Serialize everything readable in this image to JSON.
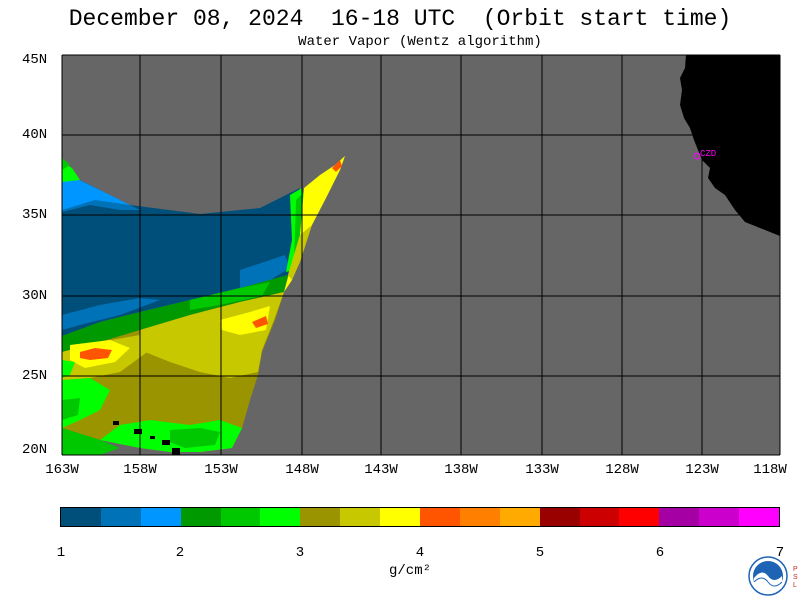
{
  "header": {
    "title": "December 08, 2024  16-18 UTC  (Orbit start time)",
    "subtitle": "Water Vapor (Wentz algorithm)"
  },
  "map": {
    "lat_labels": [
      "45N",
      "40N",
      "35N",
      "30N",
      "25N",
      "20N"
    ],
    "lon_labels": [
      "163W",
      "158W",
      "153W",
      "148W",
      "143W",
      "138W",
      "133W",
      "128W",
      "123W",
      "118W"
    ],
    "lat_range": [
      20,
      45
    ],
    "lon_range": [
      -163,
      -118
    ],
    "station_label": "CZD",
    "colors": {
      "no_data": "#666666",
      "land": "#000000",
      "grid": "#000000",
      "station": "#ff00ff"
    }
  },
  "colorbar": {
    "tick_labels": [
      "1",
      "2",
      "3",
      "4",
      "5",
      "6",
      "7"
    ],
    "units": "g/cm²",
    "colors": [
      "#004f7a",
      "#0072b8",
      "#0096ff",
      "#009900",
      "#00c800",
      "#00ff00",
      "#9a9400",
      "#c8c800",
      "#ffff00",
      "#ff5500",
      "#ff7f00",
      "#ffaa00",
      "#990000",
      "#cc0000",
      "#ff0000",
      "#a400a4",
      "#cc00cc",
      "#ff00ff"
    ]
  },
  "logo": {
    "name": "NOAA",
    "credit_letters": [
      "P",
      "S",
      "L"
    ]
  }
}
